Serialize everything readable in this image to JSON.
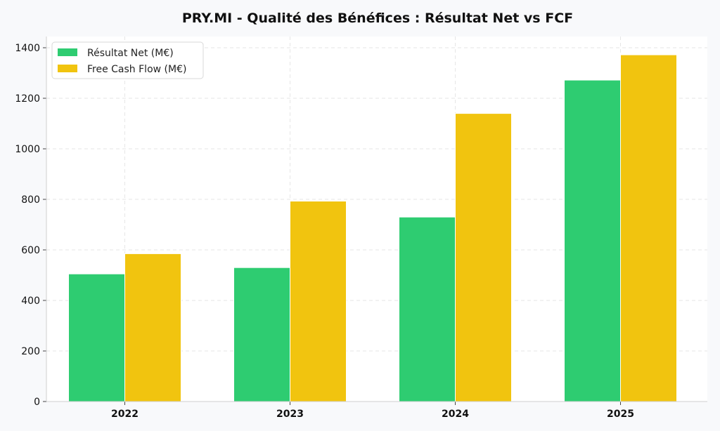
{
  "chart_data": {
    "type": "bar",
    "title": "PRY.MI - Qualité des Bénéfices : Résultat Net vs FCF",
    "xlabel": "",
    "ylabel": "",
    "categories": [
      "2022",
      "2023",
      "2024",
      "2025"
    ],
    "series": [
      {
        "name": "Résultat Net (M€)",
        "color": "#2ecc71",
        "values": [
          505,
          530,
          730,
          1272
        ]
      },
      {
        "name": "Free Cash Flow (M€)",
        "color": "#f1c40f",
        "values": [
          585,
          793,
          1140,
          1372
        ]
      }
    ],
    "ylim": [
      0,
      1400
    ],
    "yticks": [
      "0",
      "200",
      "400",
      "600",
      "800",
      "1000",
      "1200",
      "1400"
    ],
    "grid": true,
    "legend_position": "top-left"
  }
}
